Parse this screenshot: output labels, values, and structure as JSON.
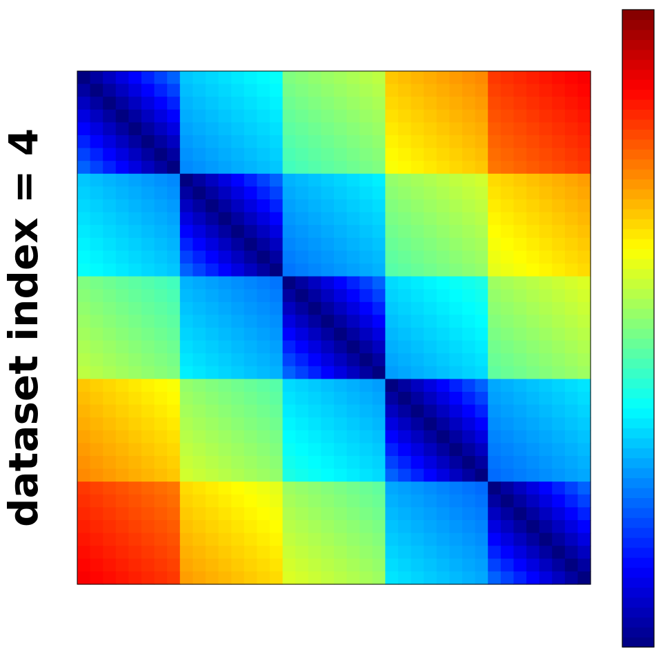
{
  "chart_data": {
    "type": "heatmap",
    "ylabel": "dataset index = 4",
    "colormap": "jet",
    "colorbar": true,
    "ticks": "none",
    "n_blocks": 5,
    "block_levels": [
      [
        0.1,
        0.32,
        0.5,
        0.68,
        0.82
      ],
      [
        0.32,
        0.1,
        0.3,
        0.52,
        0.66
      ],
      [
        0.5,
        0.3,
        0.1,
        0.34,
        0.53
      ],
      [
        0.68,
        0.52,
        0.34,
        0.1,
        0.29
      ],
      [
        0.82,
        0.66,
        0.53,
        0.29,
        0.1
      ]
    ],
    "intra_block_gradient": 0.06,
    "diagonal_value": 0.0,
    "color_range": [
      0,
      1
    ]
  }
}
